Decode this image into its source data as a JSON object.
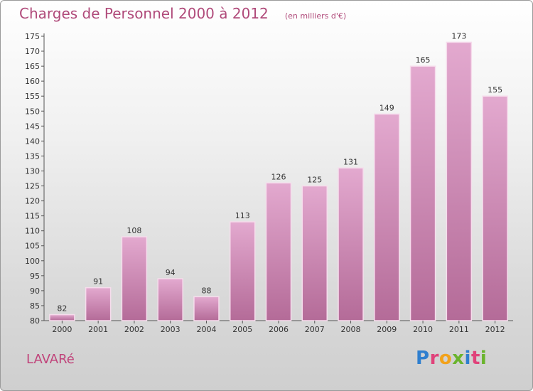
{
  "header": {
    "title": "Charges de Personnel 2000 à 2012",
    "unit_note": "(en milliers d'€)"
  },
  "footer": {
    "commune": "LAVARé",
    "brand": "Proxiti",
    "brand_letters": [
      "P",
      "r",
      "o",
      "x",
      "i",
      "t",
      "i"
    ],
    "brand_colors": [
      "#2f7fcf",
      "#e0427a",
      "#f2a21b",
      "#6ab42d",
      "#2f7fcf",
      "#e0427a",
      "#6ab42d"
    ]
  },
  "colors": {
    "bar_top": "#e3a9cf",
    "bar_bottom": "#b46b98",
    "bar_edge": "#f6dcec",
    "text": "#333333"
  },
  "chart_data": {
    "type": "bar",
    "title": "Charges de Personnel 2000 à 2012",
    "subtitle": "(en milliers d'€)",
    "categories": [
      "2000",
      "2001",
      "2002",
      "2003",
      "2004",
      "2005",
      "2006",
      "2007",
      "2008",
      "2009",
      "2010",
      "2011",
      "2012"
    ],
    "values": [
      82,
      91,
      108,
      94,
      88,
      113,
      126,
      125,
      131,
      149,
      165,
      173,
      155
    ],
    "xlabel": "",
    "ylabel": "",
    "ylim": [
      80,
      175
    ],
    "yticks": [
      80,
      85,
      90,
      95,
      100,
      105,
      110,
      115,
      120,
      125,
      130,
      135,
      140,
      145,
      150,
      155,
      160,
      165,
      170,
      175
    ],
    "grid": false,
    "legend": "none"
  }
}
